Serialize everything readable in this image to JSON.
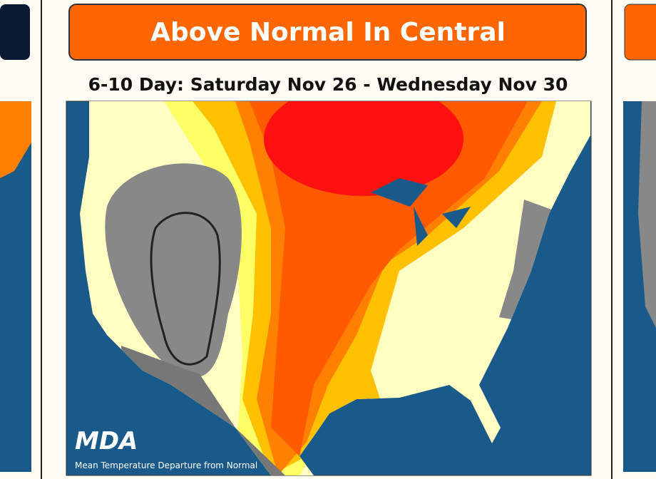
{
  "panel": {
    "title": "Above Normal In Central",
    "subtitle": "6-10 Day: Saturday Nov 26 - Wednesday Nov 30",
    "logo": "MDA",
    "caption": "Mean Temperature Departure from Normal"
  }
}
